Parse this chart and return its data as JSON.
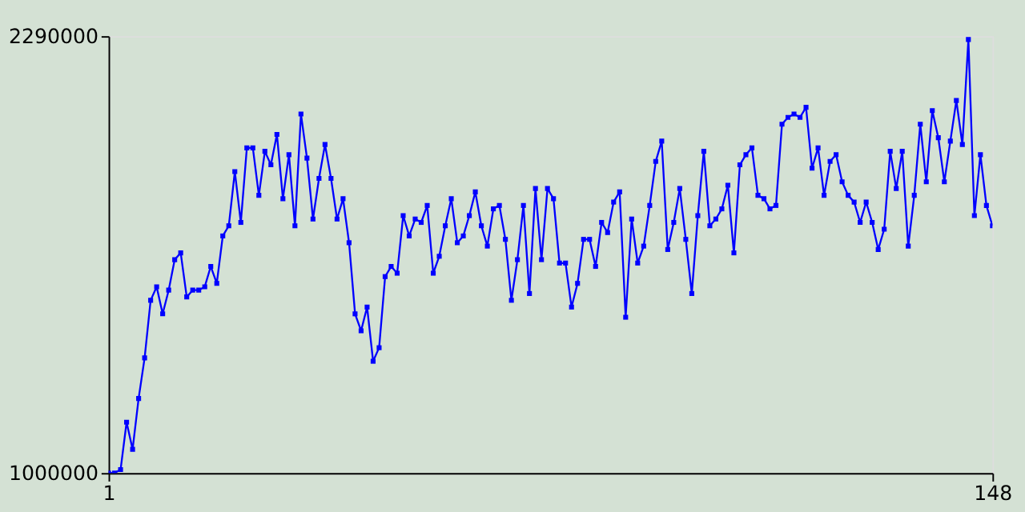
{
  "chart_data": {
    "type": "line",
    "x": [
      1,
      2,
      3,
      4,
      5,
      6,
      7,
      8,
      9,
      10,
      11,
      12,
      13,
      14,
      15,
      16,
      17,
      18,
      19,
      20,
      21,
      22,
      23,
      24,
      25,
      26,
      27,
      28,
      29,
      30,
      31,
      32,
      33,
      34,
      35,
      36,
      37,
      38,
      39,
      40,
      41,
      42,
      43,
      44,
      45,
      46,
      47,
      48,
      49,
      50,
      51,
      52,
      53,
      54,
      55,
      56,
      57,
      58,
      59,
      60,
      61,
      62,
      63,
      64,
      65,
      66,
      67,
      68,
      69,
      70,
      71,
      72,
      73,
      74,
      75,
      76,
      77,
      78,
      79,
      80,
      81,
      82,
      83,
      84,
      85,
      86,
      87,
      88,
      89,
      90,
      91,
      92,
      93,
      94,
      95,
      96,
      97,
      98,
      99,
      100,
      101,
      102,
      103,
      104,
      105,
      106,
      107,
      108,
      109,
      110,
      111,
      112,
      113,
      114,
      115,
      116,
      117,
      118,
      119,
      120,
      121,
      122,
      123,
      124,
      125,
      126,
      127,
      128,
      129,
      130,
      131,
      132,
      133,
      134,
      135,
      136,
      137,
      138,
      139,
      140,
      141,
      142,
      143,
      144,
      145,
      146,
      147,
      148
    ],
    "series": [
      {
        "color": "#0000ff",
        "values": [
          1000000,
          1000000,
          1010000,
          1150000,
          1070000,
          1220000,
          1340000,
          1510000,
          1550000,
          1470000,
          1540000,
          1630000,
          1650000,
          1520000,
          1540000,
          1540000,
          1550000,
          1610000,
          1560000,
          1700000,
          1730000,
          1890000,
          1740000,
          1960000,
          1960000,
          1820000,
          1950000,
          1910000,
          2000000,
          1810000,
          1940000,
          1730000,
          2060000,
          1930000,
          1750000,
          1870000,
          1970000,
          1870000,
          1750000,
          1810000,
          1680000,
          1470000,
          1420000,
          1490000,
          1330000,
          1370000,
          1580000,
          1610000,
          1590000,
          1760000,
          1700000,
          1750000,
          1740000,
          1790000,
          1590000,
          1640000,
          1730000,
          1810000,
          1680000,
          1700000,
          1760000,
          1830000,
          1730000,
          1670000,
          1780000,
          1790000,
          1690000,
          1510000,
          1630000,
          1790000,
          1530000,
          1840000,
          1630000,
          1840000,
          1810000,
          1620000,
          1620000,
          1490000,
          1560000,
          1690000,
          1690000,
          1610000,
          1740000,
          1710000,
          1800000,
          1830000,
          1460000,
          1750000,
          1620000,
          1670000,
          1790000,
          1920000,
          1980000,
          1660000,
          1740000,
          1840000,
          1690000,
          1530000,
          1760000,
          1950000,
          1730000,
          1750000,
          1780000,
          1850000,
          1650000,
          1910000,
          1940000,
          1960000,
          1820000,
          1810000,
          1780000,
          1790000,
          2030000,
          2050000,
          2060000,
          2050000,
          2080000,
          1900000,
          1960000,
          1820000,
          1920000,
          1940000,
          1860000,
          1820000,
          1800000,
          1740000,
          1800000,
          1740000,
          1660000,
          1720000,
          1950000,
          1840000,
          1950000,
          1670000,
          1820000,
          2030000,
          1860000,
          2070000,
          1990000,
          1860000,
          1980000,
          2100000,
          1970000,
          2280000,
          1760000,
          1940000,
          1790000,
          1730000
        ]
      }
    ],
    "xlim": [
      1,
      148
    ],
    "xticks": [
      1,
      148
    ],
    "ylim": [
      1000000,
      2290000
    ],
    "yticks": [
      1000000,
      2290000
    ],
    "marker": "square",
    "line_style": "solid"
  }
}
